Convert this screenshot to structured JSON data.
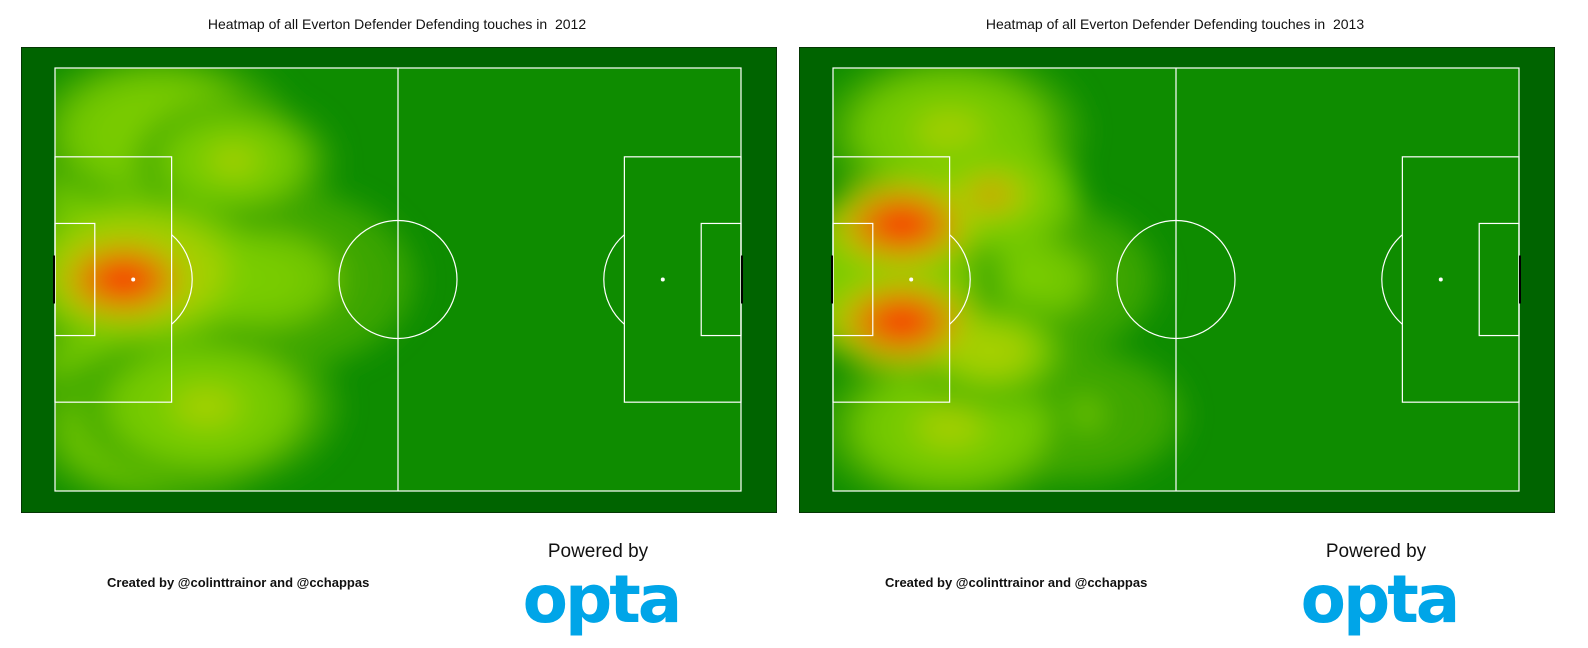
{
  "branding": {
    "credit": "Created by @colinttrainor and @cchappas",
    "powered_by": "Powered by",
    "logo_text": "opta",
    "logo_color": "#00a5e8"
  },
  "colors": {
    "pitch_dark": "#006400",
    "pitch_mid": "#0e8c00",
    "line": "#ffffff",
    "heat_scale": [
      "#0b8500",
      "#3fa800",
      "#7acc00",
      "#a8d000",
      "#d49a00",
      "#ef5a00",
      "#ff1a00"
    ]
  },
  "chart_data": [
    {
      "type": "heatmap",
      "title": "Heatmap of all Everton Defender Defending touches in  2012",
      "season": "2012",
      "grid": false,
      "legend": "none",
      "xlim": [
        0,
        100
      ],
      "ylim": [
        0,
        100
      ],
      "hotspots": [
        {
          "x": 10,
          "y": 50,
          "intensity": 1.0,
          "spread": 7
        },
        {
          "x": 12,
          "y": 48,
          "intensity": 0.7,
          "spread": 11
        },
        {
          "x": 26,
          "y": 22,
          "intensity": 0.5,
          "spread": 9
        },
        {
          "x": 22,
          "y": 80,
          "intensity": 0.45,
          "spread": 12
        },
        {
          "x": 15,
          "y": 15,
          "intensity": 0.4,
          "spread": 12
        },
        {
          "x": 15,
          "y": 85,
          "intensity": 0.4,
          "spread": 12
        },
        {
          "x": 30,
          "y": 50,
          "intensity": 0.38,
          "spread": 14
        },
        {
          "x": 6,
          "y": 30,
          "intensity": 0.35,
          "spread": 9
        },
        {
          "x": 6,
          "y": 70,
          "intensity": 0.35,
          "spread": 9
        }
      ]
    },
    {
      "type": "heatmap",
      "title": "Heatmap of all Everton Defender Defending touches in  2013",
      "season": "2013",
      "grid": false,
      "legend": "none",
      "xlim": [
        0,
        100
      ],
      "ylim": [
        0,
        100
      ],
      "hotspots": [
        {
          "x": 10,
          "y": 37,
          "intensity": 0.95,
          "spread": 7
        },
        {
          "x": 10,
          "y": 60,
          "intensity": 1.0,
          "spread": 7
        },
        {
          "x": 23,
          "y": 30,
          "intensity": 0.6,
          "spread": 8
        },
        {
          "x": 23,
          "y": 67,
          "intensity": 0.55,
          "spread": 8
        },
        {
          "x": 17,
          "y": 15,
          "intensity": 0.42,
          "spread": 12
        },
        {
          "x": 17,
          "y": 85,
          "intensity": 0.42,
          "spread": 12
        },
        {
          "x": 28,
          "y": 50,
          "intensity": 0.38,
          "spread": 12
        },
        {
          "x": 6,
          "y": 50,
          "intensity": 0.4,
          "spread": 12
        },
        {
          "x": 35,
          "y": 82,
          "intensity": 0.25,
          "spread": 10
        }
      ]
    }
  ]
}
